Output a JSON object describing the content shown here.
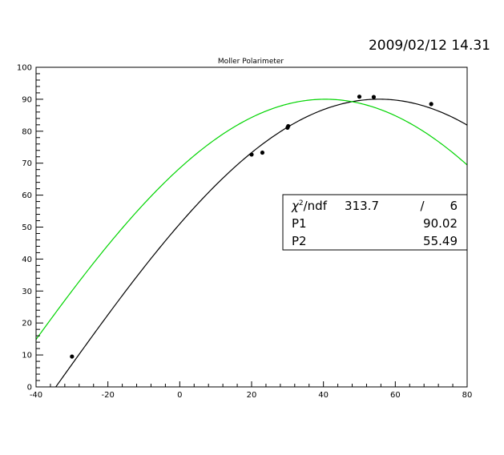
{
  "datestamp": "2009/02/12  14.31",
  "chart_data": {
    "type": "scatter",
    "title": "Moller Polarimeter",
    "xlabel": "",
    "ylabel": "",
    "xlim": [
      -40,
      80
    ],
    "ylim": [
      0,
      100
    ],
    "x_ticks": [
      "-40",
      "-20",
      "0",
      "20",
      "40",
      "60",
      "80"
    ],
    "y_ticks": [
      "0",
      "10",
      "20",
      "30",
      "40",
      "50",
      "60",
      "70",
      "80",
      "90",
      "100"
    ],
    "grid": false,
    "series": [
      {
        "kind": "points",
        "color": "#000000",
        "x": [
          -30,
          20,
          23,
          30,
          30.2,
          50,
          54,
          70
        ],
        "y": [
          9.5,
          72.7,
          73.3,
          81.1,
          81.6,
          90.8,
          90.7,
          88.5
        ]
      },
      {
        "kind": "fit-curve",
        "color": "#000000",
        "amplitude": 90.02,
        "phase_deg": 55.49
      },
      {
        "kind": "reference-curve",
        "color": "#00d400",
        "amplitude": 90.0,
        "phase_deg": 40.5
      }
    ],
    "stats": {
      "placement": "right-middle",
      "rows": [
        {
          "label": "χ²/ndf",
          "value": "313.7",
          "sep": "/",
          "value2": "6"
        },
        {
          "label": "P1",
          "value": "90.02"
        },
        {
          "label": "P2",
          "value": "55.49"
        }
      ]
    }
  }
}
